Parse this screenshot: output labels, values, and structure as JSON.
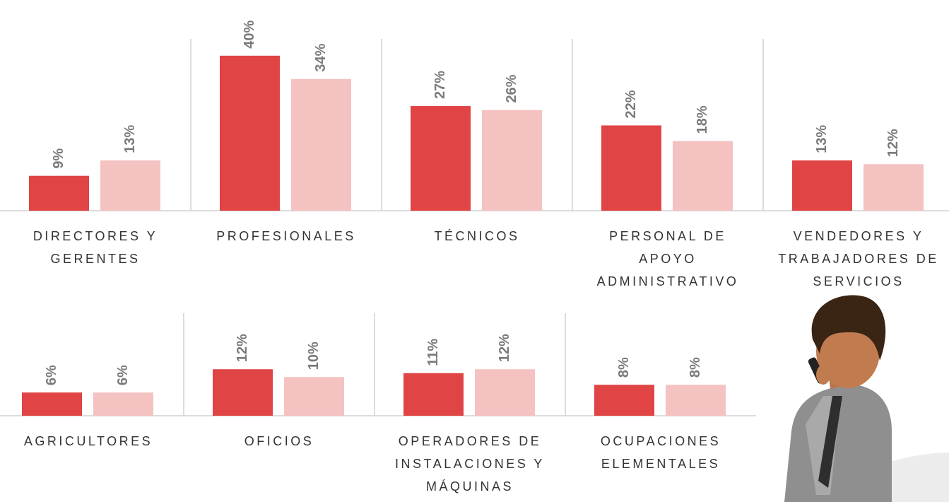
{
  "chart_data": [
    {
      "type": "bar",
      "categories": [
        "DIRECTORES Y GERENTES",
        "PROFESIONALES",
        "TÉCNICOS",
        "PERSONAL DE APOYO ADMINISTRATIVO",
        "VENDEDORES Y TRABAJADORES DE SERVICIOS"
      ],
      "series": [
        {
          "color": "#e04444",
          "values": [
            9,
            40,
            27,
            22,
            13
          ],
          "value_labels": [
            "9%",
            "40%",
            "27%",
            "22%",
            "13%"
          ]
        },
        {
          "color": "#f5c2c2",
          "values": [
            13,
            34,
            26,
            18,
            12
          ],
          "value_labels": [
            "13%",
            "34%",
            "26%",
            "18%",
            "12%"
          ]
        }
      ]
    },
    {
      "type": "bar",
      "categories": [
        "AGRICULTORES",
        "OFICIOS",
        "OPERADORES DE INSTALACIONES Y MÁQUINAS",
        "OCUPACIONES ELEMENTALES"
      ],
      "series": [
        {
          "color": "#e04444",
          "values": [
            6,
            12,
            11,
            8
          ],
          "value_labels": [
            "6%",
            "12%",
            "11%",
            "8%"
          ]
        },
        {
          "color": "#f5c2c2",
          "values": [
            6,
            10,
            12,
            8
          ],
          "value_labels": [
            "6%",
            "10%",
            "12%",
            "8%"
          ]
        }
      ]
    }
  ]
}
